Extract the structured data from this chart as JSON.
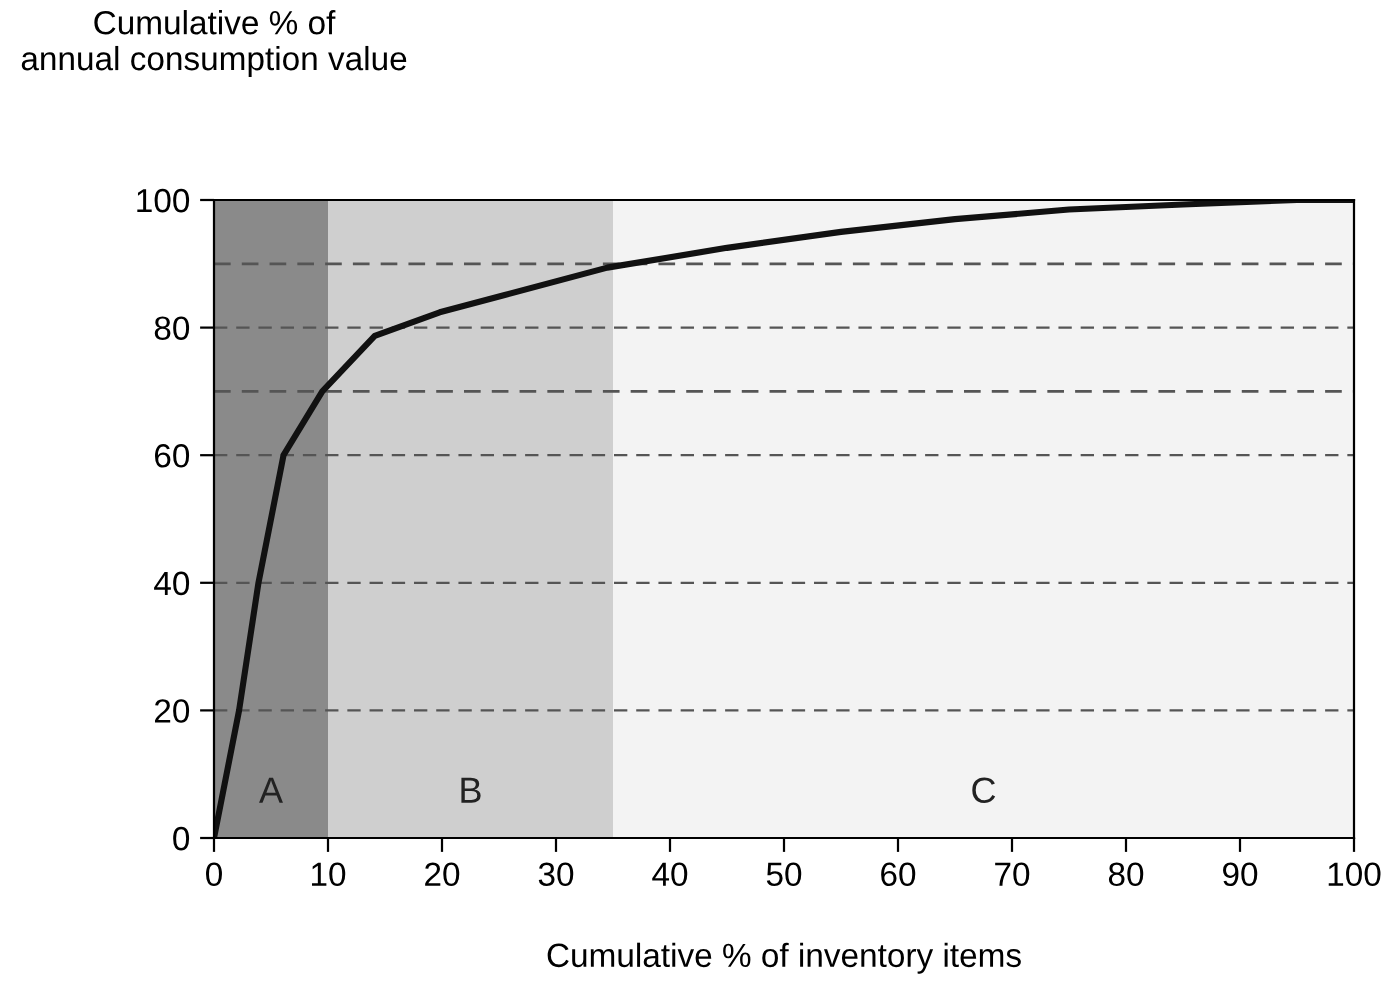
{
  "chart_data": {
    "type": "line",
    "ylabel": "Cumulative % of\nannual consumption value",
    "xlabel": "Cumulative % of inventory items",
    "x": [
      0,
      2.2,
      3.9,
      6.1,
      9.5,
      14.1,
      19.8,
      25.5,
      34.5,
      45,
      55,
      65,
      75,
      85,
      95,
      100
    ],
    "series": [
      {
        "color": "#111111",
        "values": [
          0,
          20,
          40,
          60,
          70,
          78.7,
          82.4,
          85.1,
          89.4,
          92.5,
          95,
          97,
          98.5,
          99.3,
          100,
          100
        ]
      }
    ],
    "xlim": [
      0,
      100
    ],
    "ylim": [
      0,
      100
    ],
    "xticks": [
      0,
      10,
      20,
      30,
      40,
      50,
      60,
      70,
      80,
      90,
      100
    ],
    "yticks": [
      0,
      20,
      40,
      60,
      80,
      100
    ],
    "grid": "y",
    "line_style": "solid",
    "marker": "none",
    "bands": [
      {
        "axis": "x",
        "from": 0,
        "to": 10,
        "label": "A",
        "color": "#8a8a8a"
      },
      {
        "axis": "x",
        "from": 10,
        "to": 35,
        "label": "B",
        "color": "#cfcfcf"
      },
      {
        "axis": "x",
        "from": 35,
        "to": 100,
        "label": "C",
        "color": "#f3f3f3"
      }
    ],
    "ref_lines": [
      {
        "axis": "y",
        "value": 70,
        "line_style": "dashed",
        "color": "#555555"
      },
      {
        "axis": "y",
        "value": 90,
        "line_style": "dashed",
        "color": "#555555"
      }
    ]
  }
}
